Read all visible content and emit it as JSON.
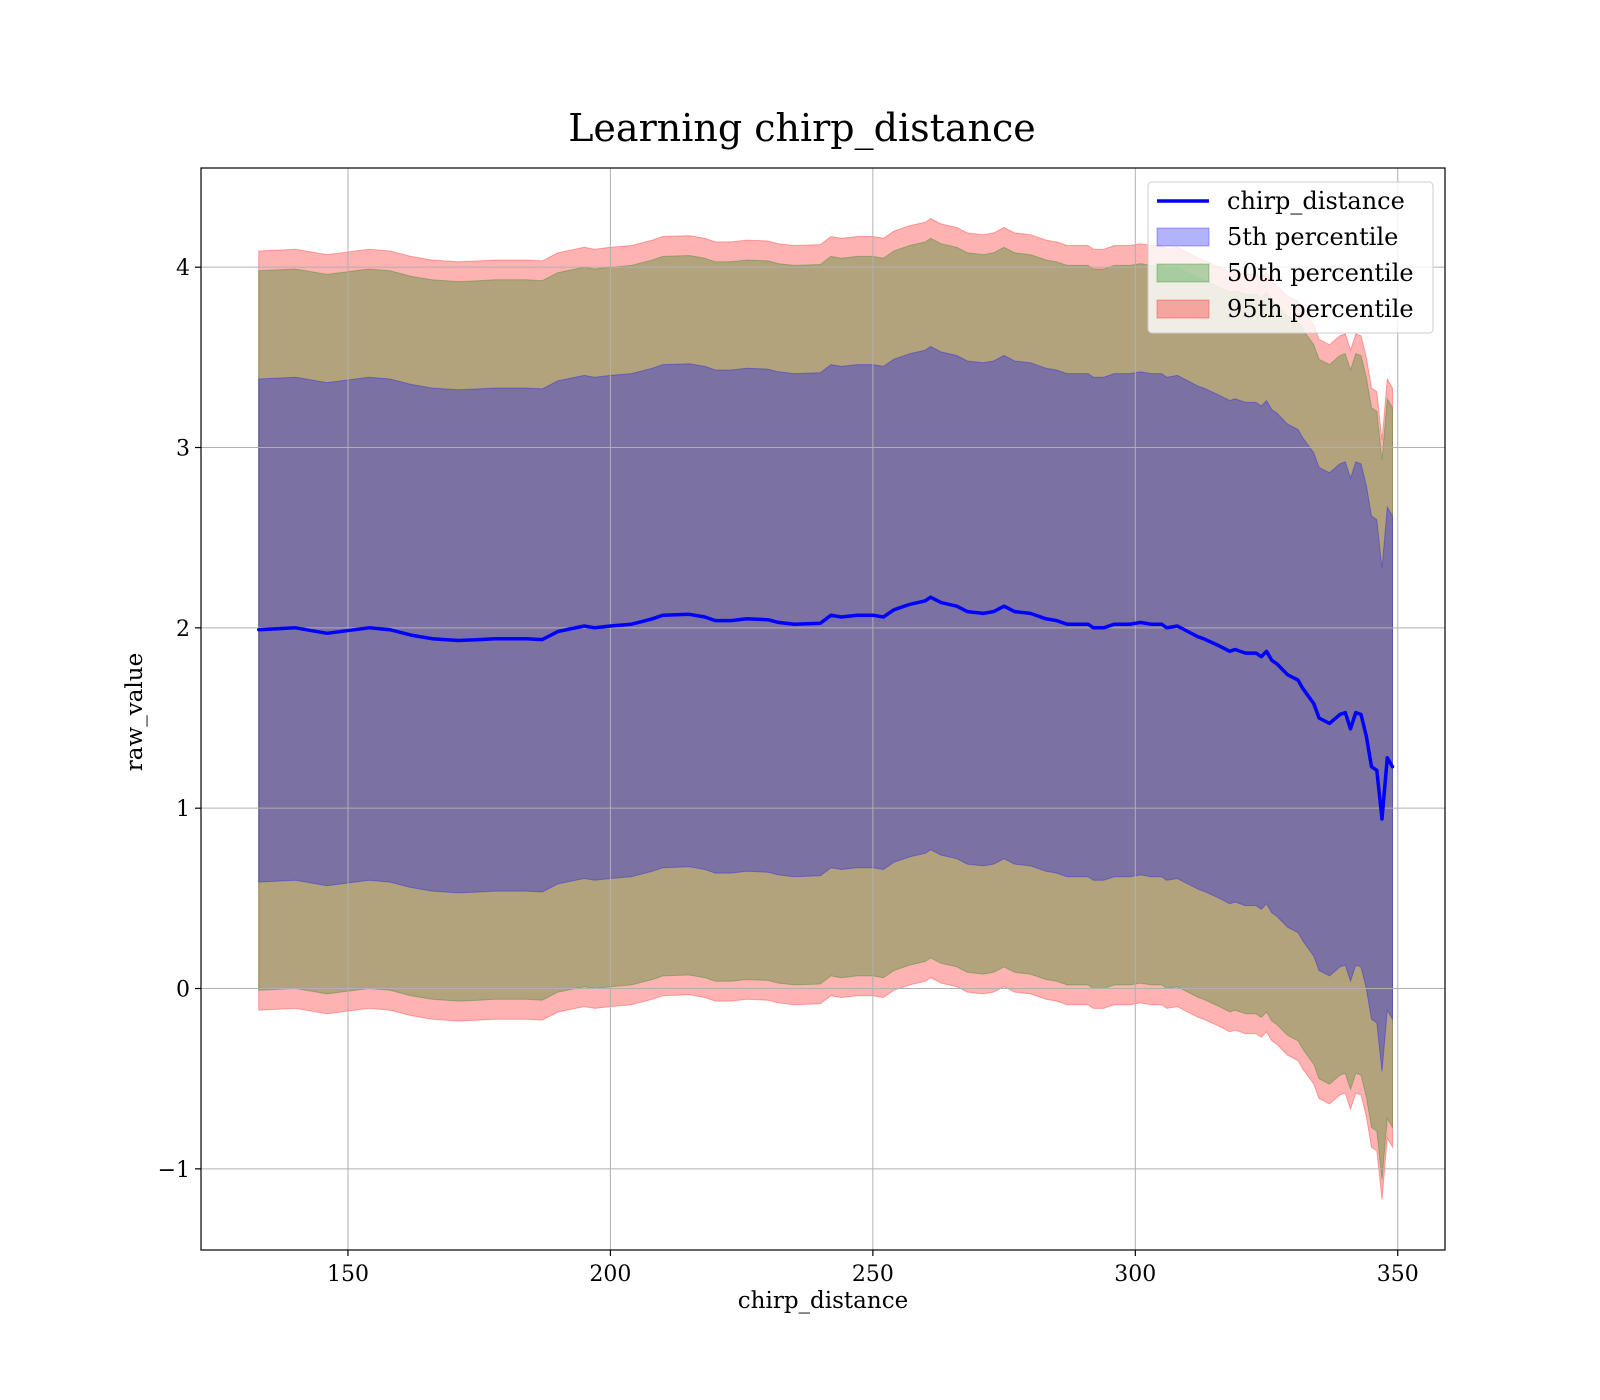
{
  "chart_data": {
    "type": "area",
    "title": "Learning chirp_distance",
    "xlabel": "chirp_distance",
    "ylabel": "raw_value",
    "xlim": [
      122,
      359
    ],
    "ylim": [
      -1.45,
      4.55
    ],
    "xticks": [
      150,
      200,
      250,
      300,
      350
    ],
    "yticks": [
      -1,
      0,
      1,
      2,
      3,
      4
    ],
    "xtick_labels": [
      "150",
      "200",
      "250",
      "300",
      "350"
    ],
    "ytick_labels": [
      "−1",
      "0",
      "1",
      "2",
      "3",
      "4"
    ],
    "grid": true,
    "legend_position": "top-right",
    "legend": [
      {
        "label": "chirp_distance",
        "kind": "line",
        "color": "#0000ff"
      },
      {
        "label": "5th percentile",
        "kind": "patch",
        "color": "#0000ff"
      },
      {
        "label": "50th percentile",
        "kind": "patch",
        "color": "#008000"
      },
      {
        "label": "95th percentile",
        "kind": "patch",
        "color": "#ff0000"
      }
    ],
    "x": [
      133,
      140,
      146,
      154,
      158,
      162,
      166,
      171,
      175,
      178,
      184,
      187,
      190,
      195,
      197,
      200,
      204,
      208,
      210,
      215,
      218,
      220,
      223,
      226,
      230,
      232,
      235,
      240,
      242,
      244,
      247,
      250,
      252,
      254,
      257,
      260,
      261,
      263,
      266,
      268,
      271,
      273,
      275,
      277,
      280,
      283,
      285,
      287,
      291,
      292,
      294,
      296,
      299,
      301,
      303,
      305,
      306,
      308,
      310,
      312,
      313,
      316,
      318,
      319,
      321,
      323,
      324,
      325,
      326,
      327,
      329,
      331,
      332,
      334,
      335,
      337,
      339,
      340,
      341,
      342,
      343,
      344,
      345,
      346,
      347,
      348,
      349
    ],
    "median": [
      1.99,
      2.0,
      1.97,
      2.0,
      1.99,
      1.96,
      1.94,
      1.93,
      1.935,
      1.94,
      1.94,
      1.935,
      1.98,
      2.01,
      2.0,
      2.01,
      2.02,
      2.05,
      2.07,
      2.075,
      2.06,
      2.04,
      2.04,
      2.05,
      2.045,
      2.03,
      2.02,
      2.025,
      2.07,
      2.06,
      2.07,
      2.07,
      2.06,
      2.1,
      2.13,
      2.15,
      2.17,
      2.14,
      2.12,
      2.09,
      2.08,
      2.09,
      2.12,
      2.09,
      2.08,
      2.05,
      2.04,
      2.02,
      2.02,
      2.0,
      2.0,
      2.02,
      2.02,
      2.03,
      2.02,
      2.02,
      2.0,
      2.01,
      1.98,
      1.95,
      1.94,
      1.9,
      1.87,
      1.88,
      1.86,
      1.86,
      1.84,
      1.87,
      1.82,
      1.8,
      1.74,
      1.71,
      1.66,
      1.58,
      1.5,
      1.47,
      1.52,
      1.53,
      1.44,
      1.53,
      1.52,
      1.4,
      1.23,
      1.21,
      0.94,
      1.28,
      1.23
    ],
    "series": [
      {
        "name": "5th percentile",
        "color": "#0000ff",
        "opacity": 0.3,
        "lower_offset": -1.4,
        "upper_offset": 1.39
      },
      {
        "name": "50th percentile",
        "color": "#008000",
        "opacity": 0.3,
        "lower_offset": -2.0,
        "upper_offset": 1.99
      },
      {
        "name": "95th percentile",
        "color": "#ff0000",
        "opacity": 0.3,
        "lower_offset": -2.11,
        "upper_offset": 2.1
      }
    ],
    "median_color": "#0000ff",
    "frame_color": "#000000",
    "grid_color": "#b0b0b0"
  }
}
